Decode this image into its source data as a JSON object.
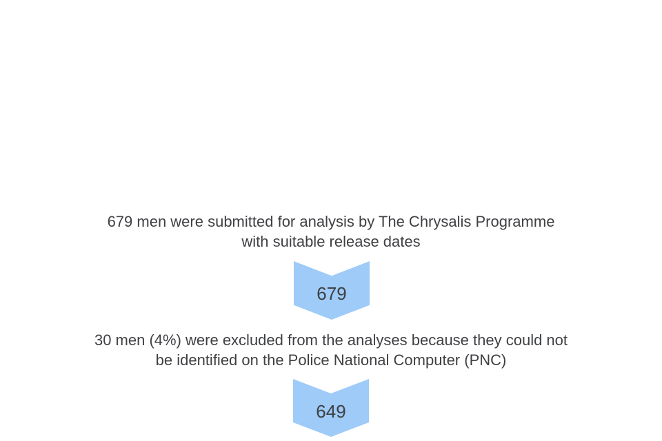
{
  "diagram": {
    "type": "flow-chart",
    "colors": {
      "background": "#ffffff",
      "arrow_fill": "#9ECBF8",
      "text": "#3F4043"
    },
    "steps": [
      {
        "text_lines": [
          "679 men were submitted for analysis by The Chrysalis Programme",
          "with suitable release dates"
        ],
        "arrow_label": "679"
      },
      {
        "text_lines": [
          "30 men (4%) were excluded from the analyses because they could not",
          "be identified on the Police National Computer (PNC)"
        ],
        "arrow_label": "649"
      }
    ]
  }
}
